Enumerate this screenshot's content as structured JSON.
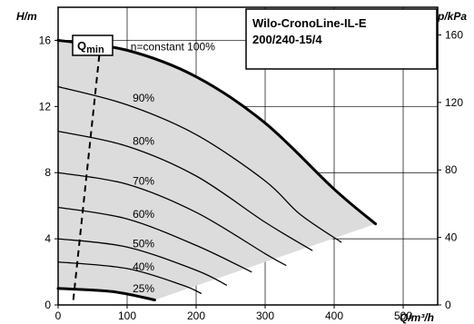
{
  "chart_data": {
    "type": "line",
    "title_lines": [
      "Wilo-CronoLine-IL-E",
      "200/240-15/4"
    ],
    "xlabel": "Q/m³/h",
    "ylabel_left": "H/m",
    "ylabel_right": "p/kPa",
    "xlim": [
      0,
      550
    ],
    "ylim": [
      0,
      18
    ],
    "ylim_right": [
      0,
      176.4
    ],
    "x_ticks": [
      0,
      100,
      200,
      300,
      400,
      500
    ],
    "y_ticks_left": [
      0,
      4,
      8,
      12,
      16
    ],
    "y_ticks_right": [
      0,
      40,
      80,
      120,
      160
    ],
    "grid": true,
    "operating_area_color": "#dcdcdc",
    "qmin_label": "Q",
    "qmin_sub": "min",
    "qmin_line": {
      "x": [
        22,
        62
      ],
      "y": [
        0.3,
        16.0
      ]
    },
    "series": [
      {
        "label": "n=constant 100%",
        "bold": true,
        "x": [
          0,
          100,
          200,
          300,
          400,
          460
        ],
        "y": [
          16.0,
          15.4,
          13.8,
          11.0,
          7.0,
          4.9
        ]
      },
      {
        "label": "90%",
        "x": [
          0,
          100,
          200,
          300,
          350,
          410
        ],
        "y": [
          13.2,
          12.1,
          10.3,
          7.5,
          5.5,
          3.8
        ]
      },
      {
        "label": "80%",
        "x": [
          0,
          100,
          200,
          300,
          368
        ],
        "y": [
          10.5,
          9.6,
          7.8,
          5.0,
          3.3
        ]
      },
      {
        "label": "70%",
        "x": [
          0,
          100,
          200,
          300,
          330
        ],
        "y": [
          8.0,
          7.3,
          5.6,
          3.1,
          2.4
        ]
      },
      {
        "label": "60%",
        "x": [
          0,
          100,
          200,
          280
        ],
        "y": [
          5.9,
          5.2,
          3.6,
          2.0
        ]
      },
      {
        "label": "50%",
        "x": [
          0,
          100,
          200,
          244
        ],
        "y": [
          4.0,
          3.5,
          2.1,
          1.2
        ]
      },
      {
        "label": "40%",
        "x": [
          0,
          100,
          180,
          207
        ],
        "y": [
          2.6,
          2.2,
          1.2,
          0.7
        ]
      },
      {
        "label": "25%",
        "x": [
          0,
          80,
          140
        ],
        "y": [
          1.0,
          0.8,
          0.3
        ],
        "bold": true
      }
    ],
    "operating_area_boundary": {
      "left": {
        "x": [
          0,
          0
        ],
        "y": [
          0,
          16.0
        ]
      },
      "right": {
        "x": [
          460,
          140
        ],
        "y": [
          4.9,
          0.3
        ]
      }
    },
    "label_positions": [
      {
        "text": "n=constant 100%",
        "x": 105,
        "y": 15.6
      },
      {
        "text": "90%",
        "x": 108,
        "y": 12.5
      },
      {
        "text": "80%",
        "x": 108,
        "y": 9.9
      },
      {
        "text": "70%",
        "x": 108,
        "y": 7.5
      },
      {
        "text": "60%",
        "x": 108,
        "y": 5.5
      },
      {
        "text": "50%",
        "x": 108,
        "y": 3.7
      },
      {
        "text": "40%",
        "x": 108,
        "y": 2.3
      },
      {
        "text": "25%",
        "x": 108,
        "y": 1.0
      }
    ]
  }
}
